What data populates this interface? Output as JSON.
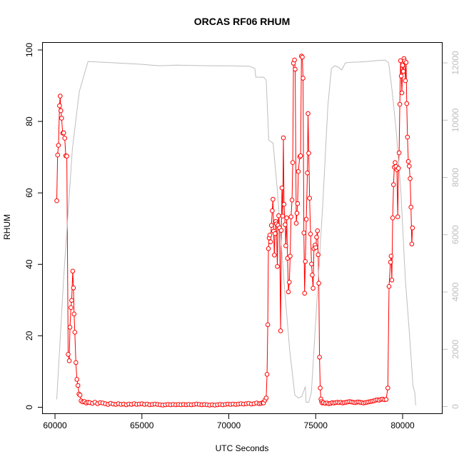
{
  "chart_data": {
    "type": "line",
    "title": "ORCAS RF06 RHUM",
    "xlabel": "UTC Seconds",
    "ylabel": "RHUM",
    "xlim": [
      59300,
      82300
    ],
    "ylim": [
      -1.9,
      102
    ],
    "y2lim": [
      -260,
      12700
    ],
    "x_ticks": [
      60000,
      65000,
      70000,
      75000,
      80000
    ],
    "y_ticks": [
      0,
      20,
      40,
      60,
      80,
      100
    ],
    "y2_ticks": [
      0,
      2000,
      4000,
      6000,
      8000,
      10000,
      12000
    ],
    "grid": false,
    "series": [
      {
        "axis": "left",
        "color": "#ff0000",
        "marker": "open-circle",
        "points": [
          [
            60100,
            57.8
          ],
          [
            60150,
            70.6
          ],
          [
            60200,
            73.3
          ],
          [
            60260,
            84.4
          ],
          [
            60300,
            87.1
          ],
          [
            60340,
            83.0
          ],
          [
            60380,
            80.9
          ],
          [
            60440,
            76.7
          ],
          [
            60500,
            76.8
          ],
          [
            60560,
            75.3
          ],
          [
            60620,
            70.4
          ],
          [
            60680,
            70.3
          ],
          [
            60760,
            14.8
          ],
          [
            60820,
            13.0
          ],
          [
            60860,
            22.4
          ],
          [
            60920,
            27.9
          ],
          [
            60960,
            29.9
          ],
          [
            61020,
            38.1
          ],
          [
            61060,
            33.4
          ],
          [
            61100,
            26.1
          ],
          [
            61140,
            21.0
          ],
          [
            61200,
            12.5
          ],
          [
            61260,
            7.8
          ],
          [
            61320,
            6.1
          ],
          [
            61380,
            3.7
          ],
          [
            61440,
            3.4
          ],
          [
            61500,
            1.8
          ],
          [
            61600,
            1.5
          ],
          [
            61700,
            1.6
          ],
          [
            61800,
            1.2
          ],
          [
            61900,
            1.4
          ],
          [
            62000,
            1.3
          ],
          [
            62150,
            1.1
          ],
          [
            62300,
            1.4
          ],
          [
            62450,
            1.0
          ],
          [
            62600,
            1.3
          ],
          [
            62750,
            1.2
          ],
          [
            62900,
            1.0
          ],
          [
            63050,
            0.8
          ],
          [
            63200,
            1.1
          ],
          [
            63350,
            0.9
          ],
          [
            63500,
            0.8
          ],
          [
            63650,
            1.0
          ],
          [
            63800,
            0.8
          ],
          [
            63950,
            0.9
          ],
          [
            64100,
            0.7
          ],
          [
            64250,
            0.9
          ],
          [
            64400,
            0.8
          ],
          [
            64550,
            1.0
          ],
          [
            64700,
            0.8
          ],
          [
            64850,
            0.9
          ],
          [
            65000,
            1.0
          ],
          [
            65150,
            0.8
          ],
          [
            65300,
            0.9
          ],
          [
            65450,
            0.7
          ],
          [
            65600,
            0.8
          ],
          [
            65750,
            0.9
          ],
          [
            65900,
            0.8
          ],
          [
            66050,
            0.7
          ],
          [
            66200,
            0.6
          ],
          [
            66350,
            0.7
          ],
          [
            66500,
            0.8
          ],
          [
            66650,
            0.7
          ],
          [
            66800,
            0.8
          ],
          [
            66950,
            0.7
          ],
          [
            67100,
            0.8
          ],
          [
            67250,
            0.7
          ],
          [
            67400,
            0.8
          ],
          [
            67550,
            0.7
          ],
          [
            67700,
            0.8
          ],
          [
            67850,
            0.7
          ],
          [
            68000,
            0.8
          ],
          [
            68150,
            0.9
          ],
          [
            68300,
            0.8
          ],
          [
            68450,
            0.7
          ],
          [
            68600,
            0.8
          ],
          [
            68750,
            0.7
          ],
          [
            68900,
            0.6
          ],
          [
            69050,
            0.7
          ],
          [
            69200,
            0.6
          ],
          [
            69350,
            0.7
          ],
          [
            69500,
            0.8
          ],
          [
            69650,
            0.7
          ],
          [
            69800,
            0.8
          ],
          [
            69950,
            0.9
          ],
          [
            70100,
            0.8
          ],
          [
            70250,
            0.9
          ],
          [
            70400,
            0.8
          ],
          [
            70550,
            0.9
          ],
          [
            70700,
            1.0
          ],
          [
            70850,
            0.9
          ],
          [
            71000,
            1.0
          ],
          [
            71150,
            1.1
          ],
          [
            71300,
            0.9
          ],
          [
            71450,
            1.0
          ],
          [
            71600,
            1.2
          ],
          [
            71750,
            1.0
          ],
          [
            71850,
            1.1
          ],
          [
            71950,
            1.3
          ],
          [
            72000,
            1.2
          ],
          [
            72080,
            2.0
          ],
          [
            72150,
            2.6
          ],
          [
            72200,
            9.2
          ],
          [
            72240,
            23.1
          ],
          [
            72280,
            44.4
          ],
          [
            72320,
            47.4
          ],
          [
            72360,
            48.2
          ],
          [
            72400,
            46.3
          ],
          [
            72450,
            50.9
          ],
          [
            72500,
            55.0
          ],
          [
            72540,
            58.2
          ],
          [
            72580,
            49.3
          ],
          [
            72620,
            42.6
          ],
          [
            72660,
            48.6
          ],
          [
            72700,
            52.0
          ],
          [
            72740,
            51.3
          ],
          [
            72790,
            39.4
          ],
          [
            72830,
            50.9
          ],
          [
            72870,
            53.6
          ],
          [
            72920,
            50.2
          ],
          [
            72980,
            21.4
          ],
          [
            73020,
            49.5
          ],
          [
            73060,
            61.4
          ],
          [
            73100,
            53.5
          ],
          [
            73140,
            75.4
          ],
          [
            73180,
            56.8
          ],
          [
            73240,
            51.1
          ],
          [
            73280,
            45.2
          ],
          [
            73330,
            53.0
          ],
          [
            73380,
            41.7
          ],
          [
            73430,
            32.3
          ],
          [
            73480,
            35.0
          ],
          [
            73530,
            42.3
          ],
          [
            73580,
            53.3
          ],
          [
            73640,
            58.0
          ],
          [
            73680,
            68.5
          ],
          [
            73720,
            96.3
          ],
          [
            73780,
            97.2
          ],
          [
            73820,
            94.6
          ],
          [
            73880,
            51.5
          ],
          [
            73920,
            54.3
          ],
          [
            73960,
            57.0
          ],
          [
            74000,
            66.0
          ],
          [
            74080,
            70.1
          ],
          [
            74130,
            70.4
          ],
          [
            74180,
            98.3
          ],
          [
            74230,
            98.0
          ],
          [
            74270,
            92.1
          ],
          [
            74320,
            48.8
          ],
          [
            74360,
            31.9
          ],
          [
            74400,
            40.8
          ],
          [
            74460,
            52.6
          ],
          [
            74520,
            65.6
          ],
          [
            74560,
            82.2
          ],
          [
            74600,
            71.1
          ],
          [
            74650,
            58.5
          ],
          [
            74700,
            48.5
          ],
          [
            74760,
            40.1
          ],
          [
            74800,
            37.0
          ],
          [
            74850,
            33.3
          ],
          [
            74900,
            44.4
          ],
          [
            74960,
            45.4
          ],
          [
            75000,
            44.7
          ],
          [
            75050,
            47.6
          ],
          [
            75100,
            49.4
          ],
          [
            75140,
            42.7
          ],
          [
            75180,
            34.7
          ],
          [
            75220,
            14.0
          ],
          [
            75260,
            5.4
          ],
          [
            75300,
            2.3
          ],
          [
            75340,
            1.6
          ],
          [
            75380,
            1.2
          ],
          [
            75450,
            1.3
          ],
          [
            75550,
            1.1
          ],
          [
            75650,
            1.2
          ],
          [
            75750,
            1.0
          ],
          [
            75850,
            1.1
          ],
          [
            75950,
            1.3
          ],
          [
            76050,
            1.2
          ],
          [
            76150,
            1.3
          ],
          [
            76250,
            1.4
          ],
          [
            76350,
            1.3
          ],
          [
            76450,
            1.4
          ],
          [
            76550,
            1.2
          ],
          [
            76650,
            1.3
          ],
          [
            76750,
            1.4
          ],
          [
            76850,
            1.5
          ],
          [
            76950,
            1.6
          ],
          [
            77050,
            1.5
          ],
          [
            77150,
            1.4
          ],
          [
            77250,
            1.3
          ],
          [
            77350,
            1.4
          ],
          [
            77450,
            1.5
          ],
          [
            77550,
            1.4
          ],
          [
            77650,
            1.3
          ],
          [
            77750,
            1.2
          ],
          [
            77850,
            1.3
          ],
          [
            77950,
            1.4
          ],
          [
            78050,
            1.5
          ],
          [
            78150,
            1.6
          ],
          [
            78250,
            1.7
          ],
          [
            78350,
            1.8
          ],
          [
            78450,
            2.0
          ],
          [
            78550,
            2.1
          ],
          [
            78650,
            2.0
          ],
          [
            78750,
            2.2
          ],
          [
            78850,
            2.3
          ],
          [
            78950,
            2.1
          ],
          [
            79050,
            2.2
          ],
          [
            79150,
            5.4
          ],
          [
            79220,
            33.8
          ],
          [
            79300,
            40.6
          ],
          [
            79340,
            42.3
          ],
          [
            79380,
            35.6
          ],
          [
            79430,
            53.0
          ],
          [
            79480,
            62.3
          ],
          [
            79520,
            67.2
          ],
          [
            79570,
            68.5
          ],
          [
            79620,
            67.4
          ],
          [
            79670,
            66.5
          ],
          [
            79720,
            53.3
          ],
          [
            79760,
            66.9
          ],
          [
            79800,
            71.2
          ],
          [
            79840,
            84.8
          ],
          [
            79880,
            97.0
          ],
          [
            79920,
            92.7
          ],
          [
            79960,
            88.0
          ],
          [
            80000,
            95.7
          ],
          [
            80040,
            94.0
          ],
          [
            80080,
            97.6
          ],
          [
            80120,
            96.9
          ],
          [
            80160,
            91.4
          ],
          [
            80200,
            96.5
          ],
          [
            80240,
            85.0
          ],
          [
            80280,
            75.6
          ],
          [
            80330,
            68.8
          ],
          [
            80380,
            67.5
          ],
          [
            80430,
            64.0
          ],
          [
            80480,
            56.0
          ],
          [
            80530,
            45.7
          ],
          [
            80570,
            50.2
          ]
        ]
      },
      {
        "axis": "right",
        "color": "#bebebe",
        "marker": "none",
        "points": [
          [
            60100,
            250
          ],
          [
            60500,
            4500
          ],
          [
            61000,
            9000
          ],
          [
            61400,
            11000
          ],
          [
            61900,
            12050
          ],
          [
            62500,
            12030
          ],
          [
            63500,
            12000
          ],
          [
            65000,
            11950
          ],
          [
            66000,
            11900
          ],
          [
            67000,
            11920
          ],
          [
            68000,
            11910
          ],
          [
            69000,
            11900
          ],
          [
            70000,
            11900
          ],
          [
            71200,
            11880
          ],
          [
            71500,
            11800
          ],
          [
            71550,
            11500
          ],
          [
            72000,
            11500
          ],
          [
            72150,
            11400
          ],
          [
            72300,
            9300
          ],
          [
            72550,
            9200
          ],
          [
            72800,
            7500
          ],
          [
            73200,
            4200
          ],
          [
            73500,
            2000
          ],
          [
            73800,
            400
          ],
          [
            74000,
            300
          ],
          [
            74200,
            350
          ],
          [
            74400,
            700
          ],
          [
            74450,
            150
          ],
          [
            74600,
            150
          ],
          [
            74750,
            500
          ],
          [
            75000,
            3000
          ],
          [
            75400,
            7000
          ],
          [
            75700,
            10500
          ],
          [
            75900,
            11800
          ],
          [
            76100,
            11900
          ],
          [
            76300,
            11850
          ],
          [
            76500,
            11750
          ],
          [
            76700,
            12000
          ],
          [
            77000,
            12020
          ],
          [
            77500,
            12030
          ],
          [
            78000,
            12050
          ],
          [
            78500,
            12080
          ],
          [
            79000,
            12100
          ],
          [
            79200,
            12000
          ],
          [
            79400,
            11000
          ],
          [
            79650,
            9500
          ],
          [
            79900,
            7500
          ],
          [
            80150,
            4500
          ],
          [
            80400,
            2500
          ],
          [
            80600,
            700
          ],
          [
            80700,
            500
          ],
          [
            80750,
            50
          ]
        ]
      }
    ]
  }
}
